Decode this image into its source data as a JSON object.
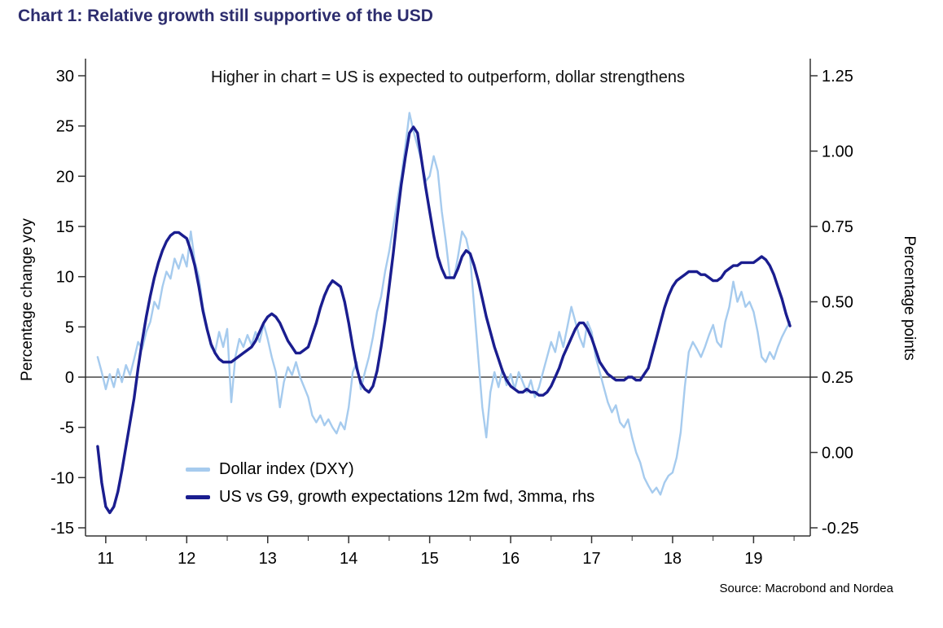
{
  "colors": {
    "title": "#2d2d6e",
    "axis": "#333333",
    "zero_line": "#222222",
    "text": "#000000",
    "background": "#ffffff",
    "dxy_line": "#a6cbee",
    "growth_line": "#1a1d8f"
  },
  "chart_data": {
    "type": "line",
    "title": "Chart 1: Relative growth still supportive of the USD",
    "annotation": "Higher in chart = US is expected to outperform, dollar strengthens",
    "source": "Source: Macrobond and Nordea",
    "zero_line": true,
    "grid": false,
    "x_axis": {
      "label": "",
      "range": [
        10.75,
        19.7
      ],
      "ticks": [
        "11",
        "12",
        "13",
        "14",
        "15",
        "16",
        "17",
        "18",
        "19"
      ],
      "minor_ticks": [
        11.5,
        12.5,
        13.5,
        14.5,
        15.5,
        16.5,
        17.5,
        18.5,
        19.5
      ]
    },
    "y_left": {
      "label": "Percentage change yoy",
      "range": [
        -15,
        30
      ],
      "ticks": [
        "30",
        "25",
        "20",
        "15",
        "10",
        "5",
        "0",
        "-5",
        "-10",
        "-15"
      ]
    },
    "y_right": {
      "label": "Percentage points",
      "range": [
        -0.25,
        1.25
      ],
      "ticks": [
        "1.25",
        "1.00",
        "0.75",
        "0.50",
        "0.25",
        "0.00",
        "-0.25"
      ]
    },
    "legend": {
      "position": "inside-bottom-left",
      "entries": [
        {
          "label": "Dollar index (DXY)",
          "color": "#a6cbee"
        },
        {
          "label": "US vs G9, growth expectations 12m fwd, 3mma, rhs",
          "color": "#1a1d8f"
        }
      ]
    },
    "series": [
      {
        "name": "Dollar index (DXY)",
        "axis": "left",
        "color": "#a6cbee",
        "line_width": 2.4,
        "x_start": 10.9,
        "x_step": 0.05,
        "values": [
          2,
          0.5,
          -1.2,
          0.3,
          -1,
          0.8,
          -0.5,
          1.2,
          0.2,
          1.8,
          3.5,
          2.8,
          4.5,
          5.5,
          7.5,
          6.8,
          9,
          10.5,
          9.8,
          11.8,
          10.8,
          12.2,
          11,
          14.5,
          11.5,
          10,
          7,
          5,
          3,
          2.5,
          4.5,
          3,
          4.8,
          -2.5,
          2,
          3.8,
          3,
          4.2,
          3.2,
          4.5,
          3.5,
          5.3,
          3.8,
          2,
          0.5,
          -3,
          -0.5,
          1,
          0.2,
          1.5,
          0,
          -1,
          -2,
          -3.8,
          -4.5,
          -3.8,
          -4.8,
          -4.2,
          -5,
          -5.6,
          -4.5,
          -5.2,
          -3,
          0.5,
          1.5,
          -1.2,
          0.5,
          2,
          4,
          6.5,
          8,
          10.5,
          12.5,
          15,
          17.5,
          20,
          23,
          26.3,
          24.5,
          23,
          21.5,
          19.5,
          20,
          22,
          20.5,
          16.5,
          13.5,
          10,
          9.8,
          12,
          14.5,
          13.8,
          12,
          7,
          2,
          -3,
          -6,
          -1.5,
          0.5,
          -1,
          0.8,
          -0.8,
          0.3,
          -1.2,
          0.5,
          -0.5,
          -1.5,
          -0.3,
          -2,
          -1,
          0.5,
          2,
          3.5,
          2.5,
          4.5,
          3,
          5,
          7,
          5.5,
          4,
          3,
          5.5,
          4.5,
          2,
          0.5,
          -1,
          -2.5,
          -3.5,
          -2.8,
          -4.5,
          -5,
          -4.2,
          -6,
          -7.5,
          -8.5,
          -10,
          -10.8,
          -11.5,
          -11,
          -11.7,
          -10.5,
          -9.8,
          -9.5,
          -8,
          -5.5,
          -1,
          2.5,
          3.5,
          2.8,
          2,
          3,
          4.2,
          5.2,
          3.5,
          3,
          5.5,
          7,
          9.5,
          7.5,
          8.5,
          7,
          7.5,
          6.5,
          4.5,
          2,
          1.5,
          2.5,
          1.8,
          3,
          4,
          4.8,
          5.5
        ]
      },
      {
        "name": "US vs G9, growth expectations 12m fwd, 3mma, rhs",
        "axis": "right",
        "color": "#1a1d8f",
        "line_width": 3.4,
        "x_start": 10.9,
        "x_step": 0.05,
        "values": [
          0.02,
          -0.1,
          -0.18,
          -0.2,
          -0.18,
          -0.13,
          -0.06,
          0.02,
          0.1,
          0.18,
          0.28,
          0.37,
          0.45,
          0.52,
          0.58,
          0.63,
          0.67,
          0.7,
          0.72,
          0.73,
          0.73,
          0.72,
          0.71,
          0.67,
          0.62,
          0.55,
          0.47,
          0.41,
          0.36,
          0.33,
          0.31,
          0.3,
          0.3,
          0.3,
          0.31,
          0.32,
          0.33,
          0.34,
          0.35,
          0.37,
          0.4,
          0.43,
          0.45,
          0.46,
          0.45,
          0.43,
          0.4,
          0.37,
          0.35,
          0.33,
          0.33,
          0.34,
          0.35,
          0.39,
          0.43,
          0.48,
          0.52,
          0.55,
          0.57,
          0.56,
          0.55,
          0.5,
          0.43,
          0.35,
          0.28,
          0.23,
          0.21,
          0.2,
          0.22,
          0.27,
          0.35,
          0.44,
          0.55,
          0.66,
          0.78,
          0.89,
          0.98,
          1.06,
          1.08,
          1.06,
          0.97,
          0.88,
          0.8,
          0.72,
          0.65,
          0.61,
          0.58,
          0.58,
          0.58,
          0.61,
          0.65,
          0.67,
          0.66,
          0.62,
          0.57,
          0.51,
          0.45,
          0.4,
          0.35,
          0.31,
          0.27,
          0.24,
          0.22,
          0.21,
          0.2,
          0.2,
          0.21,
          0.2,
          0.2,
          0.19,
          0.19,
          0.2,
          0.22,
          0.25,
          0.28,
          0.32,
          0.35,
          0.38,
          0.41,
          0.43,
          0.43,
          0.41,
          0.38,
          0.34,
          0.3,
          0.28,
          0.26,
          0.25,
          0.24,
          0.24,
          0.24,
          0.25,
          0.25,
          0.24,
          0.24,
          0.26,
          0.28,
          0.33,
          0.38,
          0.43,
          0.48,
          0.52,
          0.55,
          0.57,
          0.58,
          0.59,
          0.6,
          0.6,
          0.6,
          0.59,
          0.59,
          0.58,
          0.57,
          0.57,
          0.58,
          0.6,
          0.61,
          0.62,
          0.62,
          0.63,
          0.63,
          0.63,
          0.63,
          0.64,
          0.65,
          0.64,
          0.62,
          0.59,
          0.55,
          0.51,
          0.46,
          0.42
        ]
      }
    ]
  }
}
